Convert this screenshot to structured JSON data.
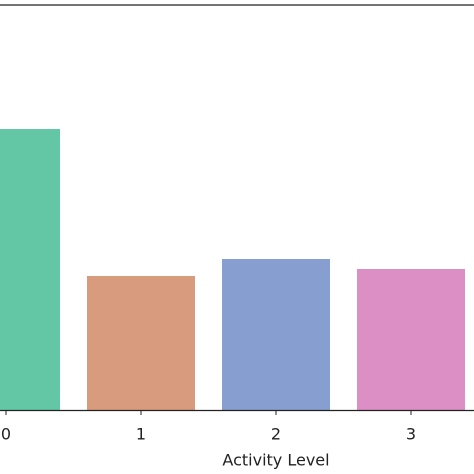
{
  "chart_data": {
    "type": "bar",
    "x_label": "Activity Level",
    "categories": [
      "0",
      "1",
      "2",
      "3"
    ],
    "values": [
      281,
      134,
      151,
      141
    ],
    "colors": [
      "#63c7a5",
      "#d99b7d",
      "#879fd0",
      "#dc8fc4"
    ],
    "ylim": [
      0,
      405
    ]
  }
}
